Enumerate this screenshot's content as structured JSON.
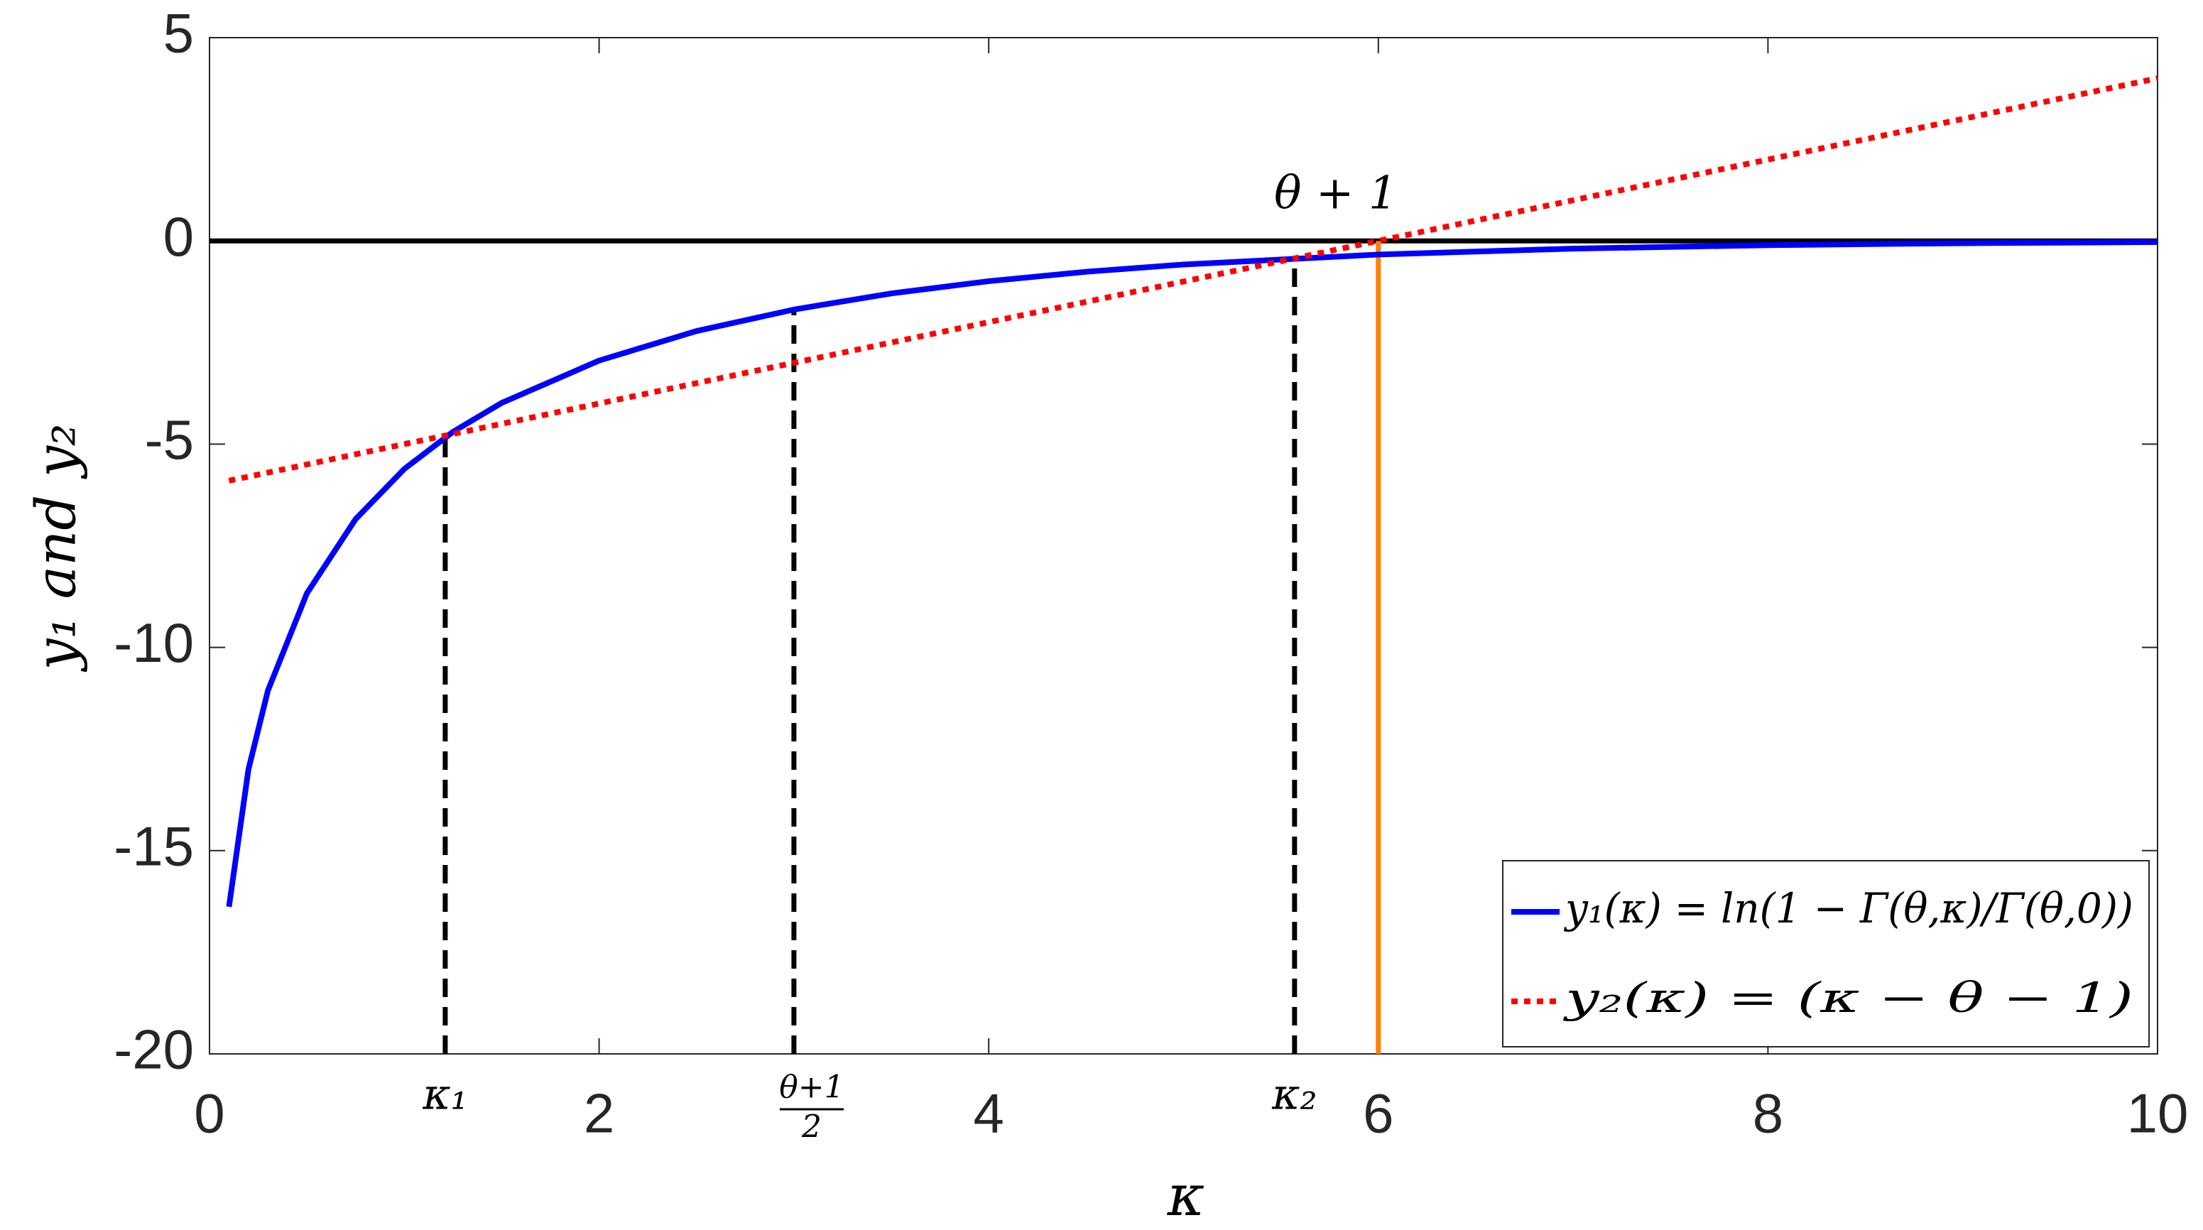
{
  "chart_data": {
    "type": "line",
    "xlabel": "κ",
    "ylabel": "y₁ and y₂",
    "xlim": [
      0,
      10
    ],
    "ylim": [
      -20,
      5
    ],
    "xticks": [
      0,
      2,
      4,
      6,
      8,
      10
    ],
    "yticks": [
      -20,
      -15,
      -10,
      -5,
      0,
      5
    ],
    "series": [
      {
        "name": "y₁(κ) = ln(1 − Γ(θ,κ)/Γ(θ,0))",
        "color": "#0000ff",
        "style": "solid",
        "x": [
          0.1,
          0.2,
          0.3,
          0.5,
          0.75,
          1,
          1.25,
          1.5,
          2,
          2.5,
          3,
          3.5,
          4,
          4.5,
          5,
          6,
          7,
          8,
          9,
          10
        ],
        "values": [
          -16.38,
          -13.0,
          -11.06,
          -8.67,
          -6.845,
          -5.61,
          -4.698,
          -3.986,
          -2.944,
          -2.218,
          -1.689,
          -1.293,
          -0.991,
          -0.76,
          -0.581,
          -0.336,
          -0.19,
          -0.105,
          -0.057,
          -0.03
        ]
      },
      {
        "name": "y₂(κ) = (κ − θ − 1)",
        "color": "#ff0000",
        "style": "dotted",
        "x": [
          0.1,
          10
        ],
        "values": [
          -5.9,
          4
        ]
      }
    ],
    "hlines": [
      {
        "y": 0,
        "color": "#000000"
      }
    ],
    "vlines": [
      {
        "label": "κ₁",
        "x": 1.21,
        "ymax": -4.79,
        "color": "#000000",
        "style": "dashed"
      },
      {
        "label": [
          "θ+1",
          "2"
        ],
        "x": 3,
        "ymax": -1.69,
        "color": "#000000",
        "style": "dashed"
      },
      {
        "label": "κ₂",
        "x": 5.57,
        "ymax": -0.43,
        "color": "#000000",
        "style": "dashed"
      },
      {
        "label": "θ + 1",
        "x": 6,
        "ymax": 0,
        "color": "#ff8000",
        "style": "solid"
      }
    ],
    "legend": "lower right"
  }
}
